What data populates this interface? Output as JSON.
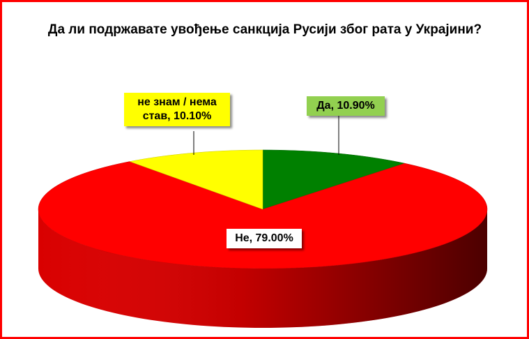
{
  "chart_data": {
    "type": "pie",
    "title": "Да ли подржавате увођење санкција Русији због рата у Украјини?",
    "values": [
      10.9,
      79.0,
      10.1
    ],
    "value_labels": [
      "Да, 10.90%",
      "Не, 79.00%",
      "не знам / нема став, 10.10%"
    ],
    "colors": [
      "#008000",
      "#ff0000",
      "#ffff00"
    ],
    "label_colors": [
      "#92d050",
      "#ffffff",
      "#ffff00"
    ]
  }
}
